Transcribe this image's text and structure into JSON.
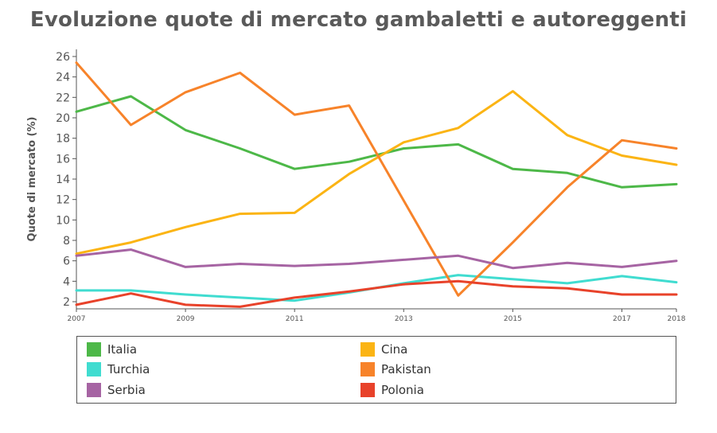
{
  "title": "Evoluzione quote di mercato gambaletti e autoreggenti",
  "chart_data": {
    "type": "line",
    "title": "Evoluzione quote di mercato gambaletti e autoreggenti",
    "xlabel": "",
    "ylabel": "Quote di mercato (%)",
    "x": [
      2007,
      2008,
      2009,
      2010,
      2011,
      2012,
      2013,
      2014,
      2015,
      2016,
      2017,
      2018
    ],
    "x_tick_labels": [
      "2007",
      "2009",
      "2011",
      "2013",
      "2015",
      "2017",
      "2018"
    ],
    "y_tick_labels": [
      "2",
      "4",
      "6",
      "8",
      "10",
      "12",
      "14",
      "16",
      "18",
      "20",
      "22",
      "24",
      "26"
    ],
    "xlim": [
      2007,
      2018
    ],
    "ylim": [
      1.3,
      26.7
    ],
    "grid": false,
    "legend_position": "bottom",
    "series": [
      {
        "name": "Italia",
        "color": "#4db848",
        "values": [
          20.6,
          22.1,
          18.8,
          17.0,
          15.0,
          15.7,
          17.0,
          17.4,
          15.0,
          14.6,
          13.2,
          13.5
        ]
      },
      {
        "name": "Cina",
        "color": "#fbb414",
        "values": [
          6.7,
          7.8,
          9.3,
          10.6,
          10.7,
          14.5,
          17.6,
          19.0,
          22.6,
          18.3,
          16.3,
          15.4
        ]
      },
      {
        "name": "Turchia",
        "color": "#40dcd0",
        "values": [
          3.1,
          3.1,
          2.7,
          2.4,
          2.1,
          2.9,
          3.8,
          4.6,
          4.2,
          3.8,
          4.5,
          3.9
        ]
      },
      {
        "name": "Pakistan",
        "color": "#f7832a",
        "values": [
          25.4,
          19.3,
          22.5,
          24.4,
          20.3,
          21.2,
          11.9,
          2.6,
          7.8,
          13.2,
          17.8,
          17.0
        ]
      },
      {
        "name": "Serbia",
        "color": "#a664a3",
        "values": [
          6.5,
          7.1,
          5.4,
          5.7,
          5.5,
          5.7,
          6.1,
          6.5,
          5.3,
          5.8,
          5.4,
          6.0
        ]
      },
      {
        "name": "Polonia",
        "color": "#e8422a",
        "values": [
          1.7,
          2.8,
          1.7,
          1.5,
          2.4,
          3.0,
          3.7,
          4.0,
          3.5,
          3.3,
          2.7,
          2.7
        ]
      }
    ]
  },
  "legend": [
    {
      "label": "Italia",
      "color": "#4db848"
    },
    {
      "label": "Cina",
      "color": "#fbb414"
    },
    {
      "label": "Turchia",
      "color": "#40dcd0"
    },
    {
      "label": "Pakistan",
      "color": "#f7832a"
    },
    {
      "label": "Serbia",
      "color": "#a664a3"
    },
    {
      "label": "Polonia",
      "color": "#e8422a"
    }
  ]
}
